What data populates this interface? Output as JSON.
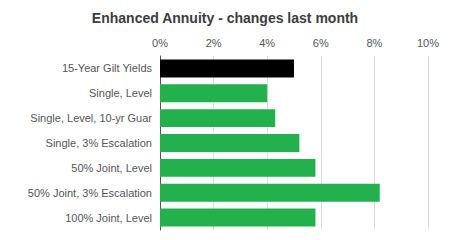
{
  "chart_data": {
    "type": "bar",
    "orientation": "horizontal",
    "title": "Enhanced Annuity - changes last month",
    "categories": [
      "100% Joint, Level",
      "50% Joint, 3% Escalation",
      "50% Joint, Level",
      "Single, 3% Escalation",
      "Single, Level, 10-yr Guar",
      "Single, Level",
      "15-Year Gilt Yields"
    ],
    "values": [
      5.8,
      8.2,
      5.8,
      5.2,
      4.3,
      4.0,
      5.0
    ],
    "colors": [
      "#22b14c",
      "#22b14c",
      "#22b14c",
      "#22b14c",
      "#22b14c",
      "#22b14c",
      "#000000"
    ],
    "xlim": [
      0,
      10
    ],
    "xticks": [
      {
        "value": 0,
        "label": "0%"
      },
      {
        "value": 2,
        "label": "2%"
      },
      {
        "value": 4,
        "label": "4%"
      },
      {
        "value": 6,
        "label": "6%"
      },
      {
        "value": 8,
        "label": "8%"
      },
      {
        "value": 10,
        "label": "10%"
      }
    ],
    "grid": true
  }
}
